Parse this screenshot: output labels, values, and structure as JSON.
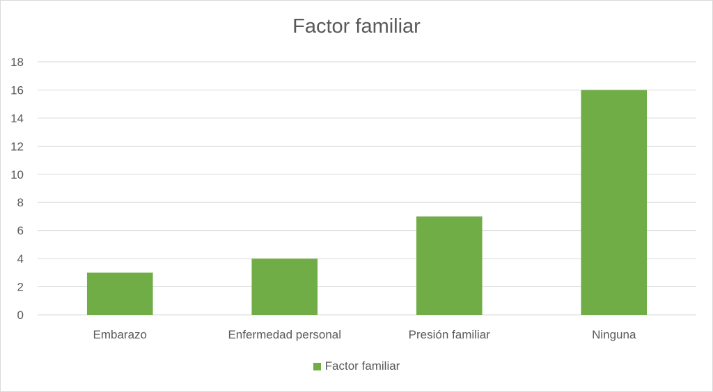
{
  "chart_data": {
    "type": "bar",
    "title": "Factor familiar",
    "categories": [
      "Embarazo",
      "Enfermedad personal",
      "Presión familiar",
      "Ninguna"
    ],
    "series": [
      {
        "name": "Factor familiar",
        "values": [
          3,
          4,
          7,
          16
        ],
        "color": "#70ad47"
      }
    ],
    "ylim": [
      0,
      18
    ],
    "yticks": [
      "0",
      "2",
      "4",
      "6",
      "8",
      "10",
      "12",
      "14",
      "16",
      "18"
    ],
    "xlabel": "",
    "ylabel": "",
    "grid": true,
    "legend": "bottom"
  }
}
